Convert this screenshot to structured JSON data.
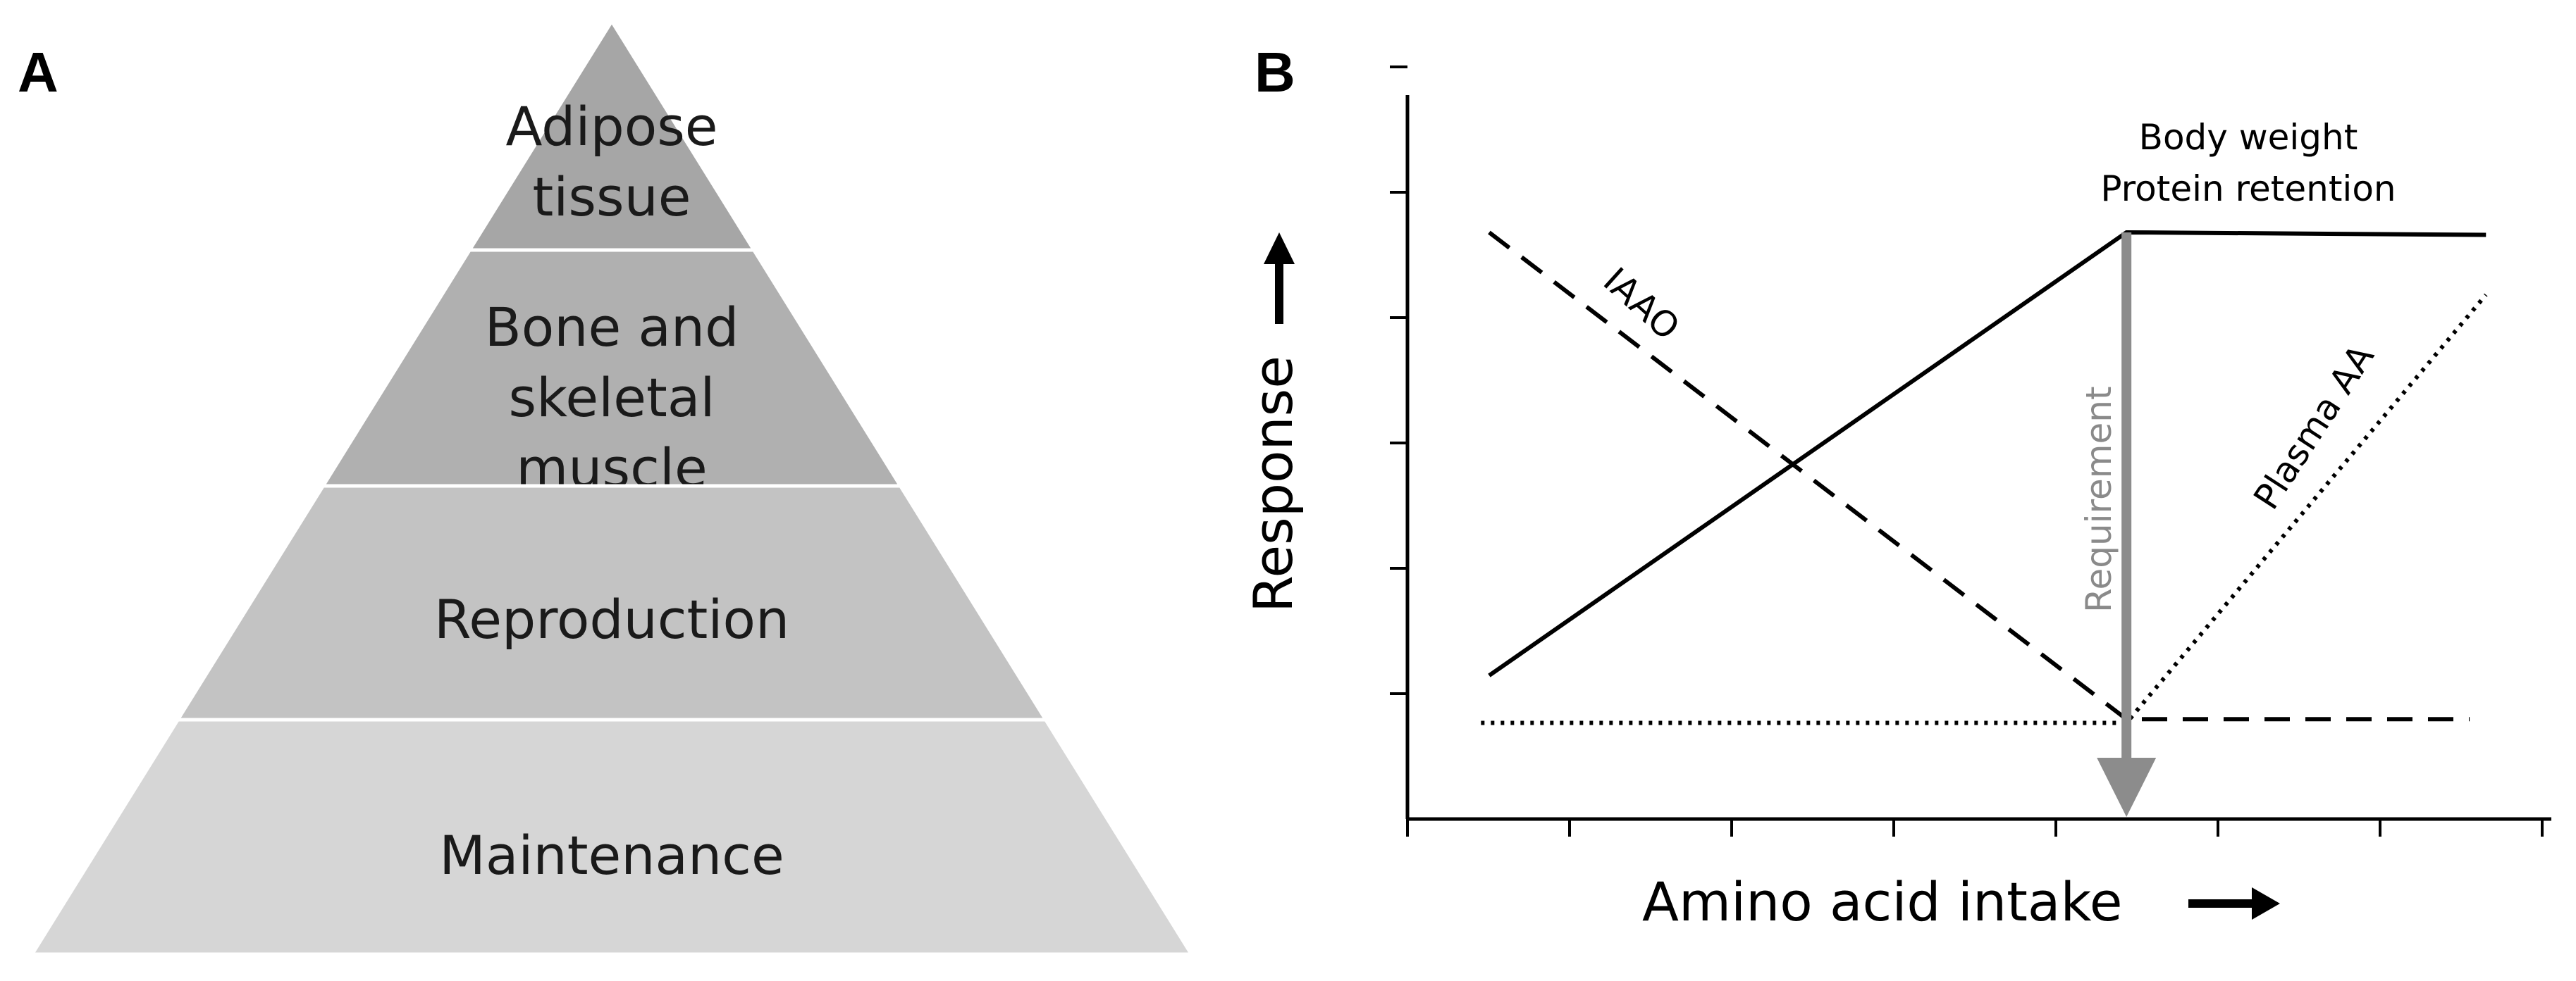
{
  "panel_a": {
    "letter": "A",
    "tiers": [
      {
        "lines": [
          "Adipose",
          "tissue"
        ],
        "color": "#a6a6a6"
      },
      {
        "lines": [
          "Bone and",
          "skeletal",
          "muscle"
        ],
        "color": "#b0b0b0"
      },
      {
        "lines": [
          "Reproduction"
        ],
        "color": "#c3c3c3"
      },
      {
        "lines": [
          "Maintenance"
        ],
        "color": "#d6d6d6"
      }
    ]
  },
  "panel_b": {
    "letter": "B",
    "y_axis_label": "Response",
    "x_axis_label": "Amino acid intake",
    "label_body_weight": "Body weight",
    "label_protein_retention": "Protein retention",
    "label_iaao": "IAAO",
    "label_plasma_aa": "Plasma AA",
    "label_requirement": "Requirement",
    "requirement_color": "#8c8c8c"
  },
  "chart_data": {
    "type": "line",
    "title": "",
    "xlabel": "Amino acid intake",
    "ylabel": "Response",
    "xlim": [
      0,
      7
    ],
    "ylim": [
      0,
      5.8
    ],
    "grid": false,
    "x_tick_count": 7,
    "y_tick_count": 6,
    "requirement_x": 4.4,
    "series": [
      {
        "name": "Body weight / Protein retention",
        "style": "solid",
        "points": [
          [
            0.5,
            1.15
          ],
          [
            4.4,
            4.7
          ],
          [
            6.6,
            4.68
          ]
        ]
      },
      {
        "name": "IAAO",
        "style": "dashed",
        "points": [
          [
            0.5,
            4.7
          ],
          [
            4.4,
            0.8
          ],
          [
            6.5,
            0.8
          ]
        ]
      },
      {
        "name": "Plasma AA",
        "style": "dotted",
        "points": [
          [
            0.45,
            0.77
          ],
          [
            4.4,
            0.77
          ],
          [
            6.6,
            4.2
          ]
        ]
      }
    ]
  }
}
